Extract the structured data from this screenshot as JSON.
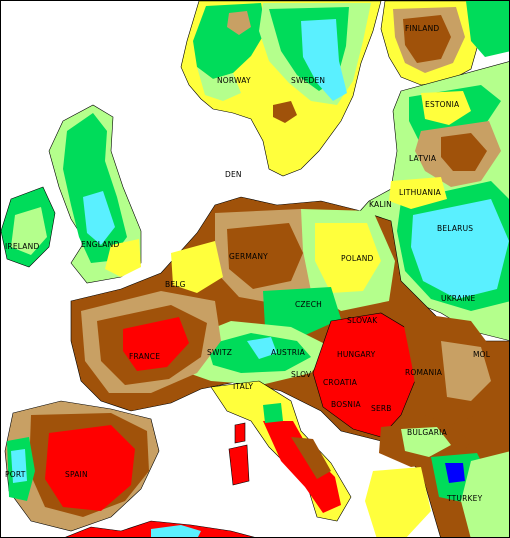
{
  "colors": {
    "sea": "#ffffff",
    "very_dry": "#ff0000",
    "dry_dark": "#a0520a",
    "dry_mid": "#c8a064",
    "dry_light": "#ffff3c",
    "near_normal": "#b4ff8c",
    "wet": "#00dc5a",
    "very_wet": "#5af0ff",
    "extremely_wet": "#0000ff",
    "border": "#000000"
  },
  "labels": {
    "finland": "FINLAND",
    "norway": "NORWAY",
    "sweden": "SWEDEN",
    "estonia": "ESTONIA",
    "latvia": "LATVIA",
    "lithuania": "LITHUANIA",
    "belarus": "BELARUS",
    "ukraine": "UKRAINE",
    "poland": "POLAND",
    "germany": "GERMANY",
    "czech": "CZECH",
    "slovak": "SLOVAK",
    "hungary": "HUNGARY",
    "austria": "AUSTRIA",
    "switz": "SWITZ",
    "france": "FRANCE",
    "belg": "BELG",
    "den": "DEN",
    "england": "ENGLAND",
    "ireland": "IRELAND",
    "spain": "SPAIN",
    "port": "PORT",
    "italy": "ITALY",
    "slov": "SLOV",
    "croatia": "CROATIA",
    "bosnia": "BOSNIA",
    "serb": "SERB",
    "romania": "ROMANIA",
    "mol": "MOL",
    "bulgaria": "BULGARIA",
    "tturkey": "TTURKEY",
    "kalin": "KALIN"
  }
}
